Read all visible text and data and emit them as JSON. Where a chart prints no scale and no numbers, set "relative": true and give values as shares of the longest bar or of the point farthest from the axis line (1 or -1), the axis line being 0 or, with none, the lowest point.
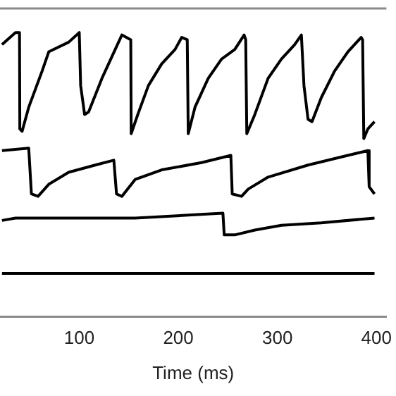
{
  "chart_data": {
    "type": "line",
    "xlabel": "Time (ms)",
    "relative": true,
    "marker": "none",
    "line_style": "solid",
    "legend": false,
    "grid": false,
    "xlim": [
      20,
      410
    ],
    "xticks": [
      100,
      200,
      300,
      400
    ],
    "series": [
      {
        "color": "#000000",
        "x": [
          22,
          35.6,
          39.7,
          40,
          42.3,
          49,
          62.5,
          69.2,
          89.3,
          100,
          101.4,
          105.4,
          109.4,
          122.9,
          136.3,
          143,
          152,
          152.4,
          159.1,
          169.8,
          183.2,
          196.7,
          203.4,
          209,
          210,
          216.8,
          230.2,
          243.6,
          257,
          266.4,
          268,
          269.1,
          277.2,
          290.6,
          304,
          317.4,
          324.2,
          326.8,
          330.9,
          334.9,
          344.3,
          357.7,
          371.1,
          384.5,
          386,
          387.2,
          391.3,
          398
        ],
        "values": [
          0.95,
          1,
          1,
          0.6,
          0.59,
          0.69,
          0.84,
          0.92,
          0.96,
          1,
          0.78,
          0.66,
          0.67,
          0.81,
          0.93,
          0.99,
          0.97,
          0.58,
          0.66,
          0.78,
          0.87,
          0.93,
          0.98,
          0.97,
          0.58,
          0.69,
          0.81,
          0.89,
          0.93,
          0.99,
          0.97,
          0.58,
          0.66,
          0.81,
          0.89,
          0.95,
          0.99,
          0.78,
          0.64,
          0.63,
          0.73,
          0.84,
          0.92,
          0.98,
          0.97,
          0.56,
          0.6,
          0.63
        ]
      },
      {
        "color": "#000000",
        "x": [
          22,
          49,
          51.7,
          58.4,
          69.2,
          89.3,
          116.1,
          134.9,
          137.6,
          143,
          156.4,
          183.2,
          223.5,
          253,
          254.4,
          263.8,
          270.5,
          290.6,
          330.9,
          371.1,
          391.3,
          392.6,
          398
        ],
        "values": [
          0.51,
          0.52,
          0.33,
          0.32,
          0.37,
          0.42,
          0.45,
          0.47,
          0.33,
          0.32,
          0.39,
          0.43,
          0.46,
          0.49,
          0.33,
          0.32,
          0.35,
          0.4,
          0.45,
          0.49,
          0.51,
          0.36,
          0.33
        ]
      },
      {
        "color": "#000000",
        "x": [
          22,
          35.6,
          156.4,
          245,
          246.3,
          257,
          277.2,
          304,
          344.3,
          398
        ],
        "values": [
          0.22,
          0.23,
          0.23,
          0.25,
          0.16,
          0.16,
          0.18,
          0.2,
          0.21,
          0.23
        ]
      },
      {
        "color": "#000000",
        "x": [
          22,
          398
        ],
        "values": [
          0,
          0
        ]
      }
    ]
  }
}
